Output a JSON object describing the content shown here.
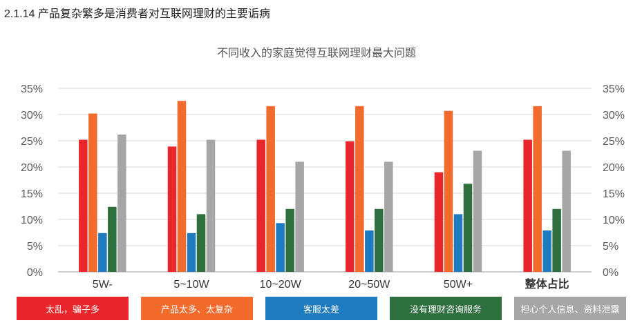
{
  "page_heading": "2.1.14 产品复杂繁多是消费者对互联网理财的主要诟病",
  "chart_data": {
    "type": "bar",
    "title": "不同收入的家庭觉得互联网理财最大问题",
    "categories": [
      "5W-",
      "5~10W",
      "10~20W",
      "20~50W",
      "50W+",
      "整体占比"
    ],
    "ylim": [
      0,
      35
    ],
    "yticks": [
      "0%",
      "5%",
      "10%",
      "15%",
      "20%",
      "25%",
      "30%",
      "35%"
    ],
    "grid": true,
    "legend_position": "bottom",
    "series": [
      {
        "name": "太乱，骗子多",
        "color": "#e8262b",
        "values": [
          25.2,
          23.9,
          25.2,
          24.9,
          19.0,
          25.2
        ]
      },
      {
        "name": "产品太多、太复杂",
        "color": "#f26b2d",
        "values": [
          30.2,
          32.6,
          31.6,
          31.6,
          30.7,
          31.6
        ]
      },
      {
        "name": "客服太差",
        "color": "#1e7bc0",
        "values": [
          7.4,
          7.4,
          9.3,
          7.9,
          11.0,
          7.9
        ]
      },
      {
        "name": "没有理财咨询服务",
        "color": "#2e6f3e",
        "values": [
          12.4,
          11.0,
          12.0,
          12.0,
          16.8,
          12.0
        ]
      },
      {
        "name": "担心个人信息、资料泄露",
        "color": "#a6a6a6",
        "values": [
          26.2,
          25.2,
          21.0,
          21.0,
          23.1,
          23.1
        ]
      }
    ]
  }
}
